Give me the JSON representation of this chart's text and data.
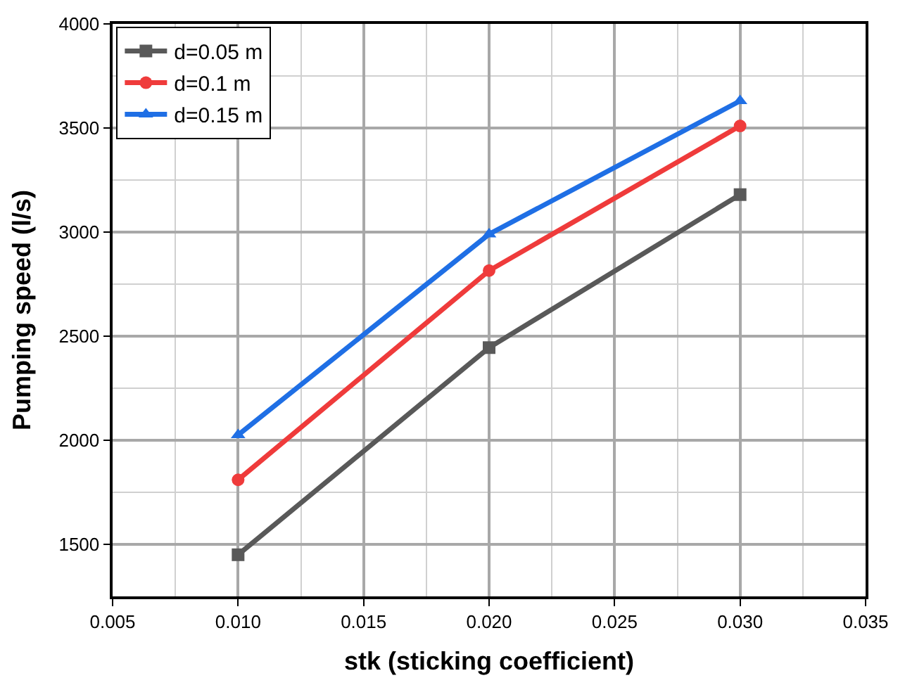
{
  "chart_data": {
    "type": "line",
    "xlabel": "stk (sticking coefficient)",
    "ylabel": "Pumping speed (l/s)",
    "x": [
      0.01,
      0.02,
      0.03
    ],
    "series": [
      {
        "name": "d=0.05 m",
        "color": "#595959",
        "values": [
          1450,
          2445,
          3180
        ],
        "marker": "square"
      },
      {
        "name": "d=0.1 m",
        "color": "#ef3b3b",
        "values": [
          1810,
          2815,
          3510
        ],
        "marker": "circle"
      },
      {
        "name": "d=0.15 m",
        "color": "#1f6fe5",
        "values": [
          2025,
          2990,
          3630
        ],
        "marker": "triangle"
      }
    ],
    "xlim": [
      0.005,
      0.035
    ],
    "xticks": [
      {
        "value": 0.005,
        "label": "0.005"
      },
      {
        "value": 0.01,
        "label": "0.010"
      },
      {
        "value": 0.015,
        "label": "0.015"
      },
      {
        "value": 0.02,
        "label": "0.020"
      },
      {
        "value": 0.025,
        "label": "0.025"
      },
      {
        "value": 0.03,
        "label": "0.030"
      },
      {
        "value": 0.035,
        "label": "0.035"
      }
    ],
    "ylim": [
      1250,
      4000
    ],
    "yticks": [
      1500,
      2000,
      2500,
      3000,
      3500,
      4000
    ],
    "grid": true,
    "legend": "top left",
    "line_style": "solid"
  }
}
